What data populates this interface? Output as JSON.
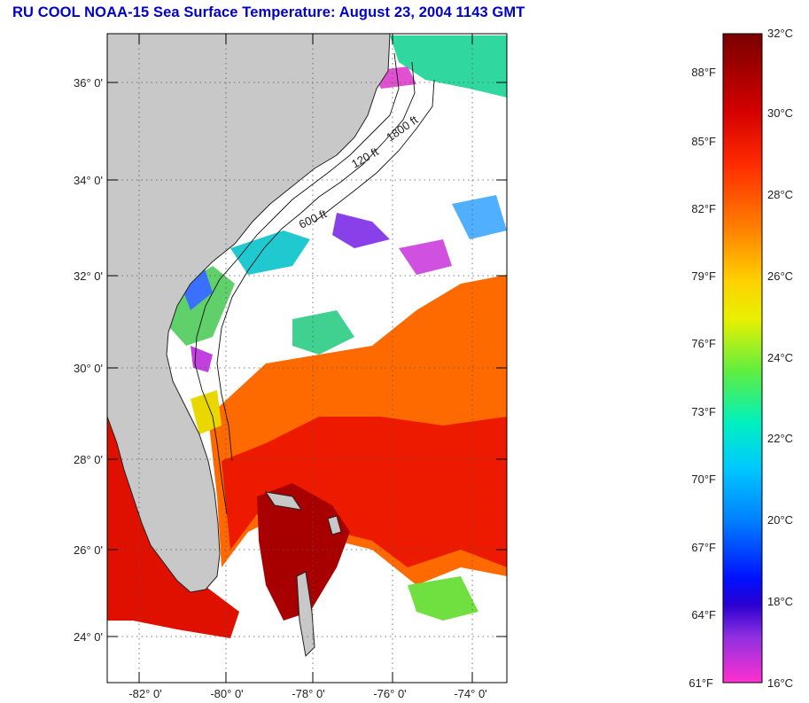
{
  "title": "RU COOL  NOAA-15  Sea Surface Temperature:  August 23, 2004 1143 GMT",
  "map": {
    "lat_labels": [
      "36° 0'",
      "34° 0'",
      "32° 0'",
      "30° 0'",
      "28° 0'",
      "26° 0'",
      "24° 0'"
    ],
    "lon_labels": [
      "-82° 0'",
      "-80° 0'",
      "-78° 0'",
      "-76° 0'",
      "-74° 0'"
    ],
    "contour_labels": [
      "120 ft",
      "600 ft",
      "1800 ft"
    ]
  },
  "colorbar": {
    "celsius_labels": [
      "32°C",
      "30°C",
      "28°C",
      "26°C",
      "24°C",
      "22°C",
      "20°C",
      "18°C",
      "16°C"
    ],
    "fahrenheit_labels": [
      "88°F",
      "85°F",
      "82°F",
      "79°F",
      "76°F",
      "73°F",
      "70°F",
      "67°F",
      "64°F",
      "61°F"
    ]
  },
  "colors": {
    "land": "#c8c8c8",
    "cloud": "#ffffff",
    "title": "#0000cc"
  }
}
